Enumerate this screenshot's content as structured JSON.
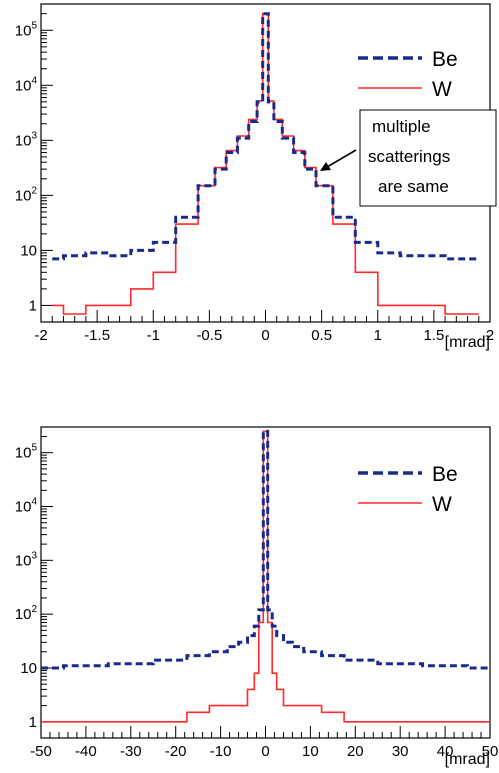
{
  "chart_data": [
    {
      "type": "line",
      "style": "step",
      "xlabel": "[mrad]",
      "ylabel": "",
      "xlim": [
        -2,
        2
      ],
      "ylim": [
        0.5,
        300000
      ],
      "yscale": "log",
      "x_ticks": [
        "-2",
        "-1.5",
        "-1",
        "-0.5",
        "0",
        "0.5",
        "1",
        "1.5",
        "2"
      ],
      "y_ticks": [
        {
          "base": "1",
          "exp": ""
        },
        {
          "base": "10",
          "exp": ""
        },
        {
          "base": "10",
          "exp": "2"
        },
        {
          "base": "10",
          "exp": "3"
        },
        {
          "base": "10",
          "exp": "4"
        },
        {
          "base": "10",
          "exp": "5"
        }
      ],
      "legend": {
        "placement": "top-right",
        "entries": [
          "Be",
          "W"
        ]
      },
      "annotation": {
        "lines": [
          "multiple",
          "scatterings",
          "are same"
        ]
      },
      "x": [
        -1.9,
        -1.7,
        -1.5,
        -1.3,
        -1.1,
        -0.9,
        -0.7,
        -0.5,
        -0.4,
        -0.3,
        -0.2,
        -0.1,
        -0.05,
        0,
        0.05,
        0.1,
        0.2,
        0.3,
        0.4,
        0.5,
        0.7,
        0.9,
        1.1,
        1.3,
        1.5,
        1.7,
        1.9
      ],
      "series": [
        {
          "name": "Be",
          "color": "#1a2a8c",
          "dash": "dashed",
          "values": [
            7,
            8,
            9,
            8,
            10,
            14,
            40,
            150,
            300,
            600,
            1100,
            2200,
            5000,
            200000,
            5000,
            2200,
            1100,
            600,
            300,
            150,
            40,
            14,
            9,
            8,
            8,
            7,
            7
          ]
        },
        {
          "name": "W",
          "color": "#ff2a2a",
          "dash": "solid",
          "values": [
            1,
            0.7,
            1,
            1,
            2,
            4,
            30,
            150,
            320,
            650,
            1200,
            2400,
            5200,
            200000,
            5200,
            2400,
            1200,
            650,
            320,
            150,
            30,
            4,
            1,
            1,
            1,
            0.7,
            0.7
          ]
        }
      ]
    },
    {
      "type": "line",
      "style": "step",
      "xlabel": "[mrad]",
      "ylabel": "",
      "xlim": [
        -50,
        50
      ],
      "ylim": [
        0.5,
        300000
      ],
      "yscale": "log",
      "x_ticks": [
        "-50",
        "-40",
        "-30",
        "-20",
        "-10",
        "0",
        "10",
        "20",
        "30",
        "40",
        "50"
      ],
      "y_ticks": [
        {
          "base": "1",
          "exp": ""
        },
        {
          "base": "10",
          "exp": ""
        },
        {
          "base": "10",
          "exp": "2"
        },
        {
          "base": "10",
          "exp": "3"
        },
        {
          "base": "10",
          "exp": "4"
        },
        {
          "base": "10",
          "exp": "5"
        }
      ],
      "legend": {
        "placement": "top-right",
        "entries": [
          "Be",
          "W"
        ]
      },
      "x": [
        -50,
        -40,
        -30,
        -20,
        -15,
        -10,
        -7,
        -5,
        -3,
        -2,
        -1,
        0,
        1,
        2,
        3,
        5,
        7,
        10,
        15,
        20,
        30,
        40,
        50
      ],
      "series": [
        {
          "name": "Be",
          "color": "#1a2a8c",
          "dash": "dashed",
          "values": [
            10,
            11,
            12,
            14,
            17,
            20,
            25,
            30,
            40,
            60,
            120,
            250000,
            120,
            60,
            40,
            30,
            25,
            20,
            17,
            14,
            12,
            11,
            10
          ]
        },
        {
          "name": "W",
          "color": "#ff2a2a",
          "dash": "solid",
          "values": [
            1,
            1,
            1,
            1,
            1.5,
            2,
            2,
            2,
            4,
            8,
            70,
            250000,
            70,
            8,
            4,
            2,
            2,
            2,
            1.5,
            1,
            1,
            1,
            1
          ]
        }
      ]
    }
  ]
}
